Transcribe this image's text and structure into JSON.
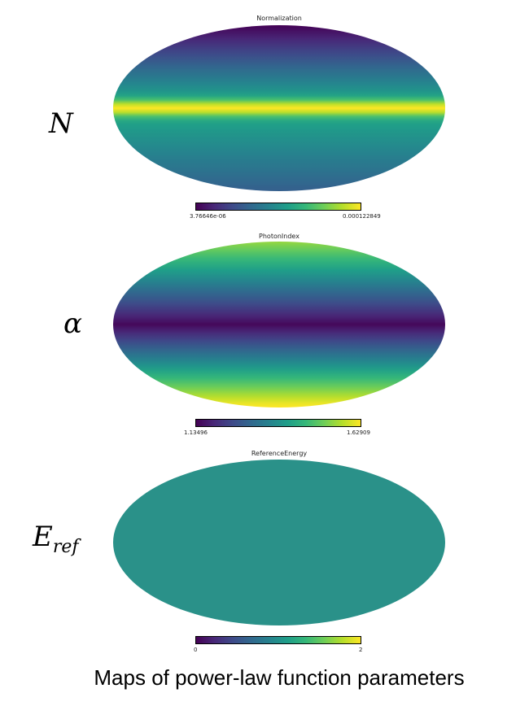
{
  "panels": [
    {
      "title": "Normalization",
      "param_symbol": "N",
      "param_sub": "",
      "cbar_min_label": "3.76646e-06",
      "cbar_max_label": "0.000122849",
      "profile": "normalization"
    },
    {
      "title": "PhotonIndex",
      "param_symbol": "α",
      "param_sub": "",
      "cbar_min_label": "1.13496",
      "cbar_max_label": "1.62909",
      "profile": "photon_index"
    },
    {
      "title": "ReferenceEnergy",
      "param_symbol": "E",
      "param_sub": "ref",
      "cbar_min_label": "0",
      "cbar_max_label": "2",
      "profile": "uniform"
    }
  ],
  "caption": "Maps of power-law function parameters",
  "colormap": "viridis",
  "uniform_color": "#2a9189"
}
